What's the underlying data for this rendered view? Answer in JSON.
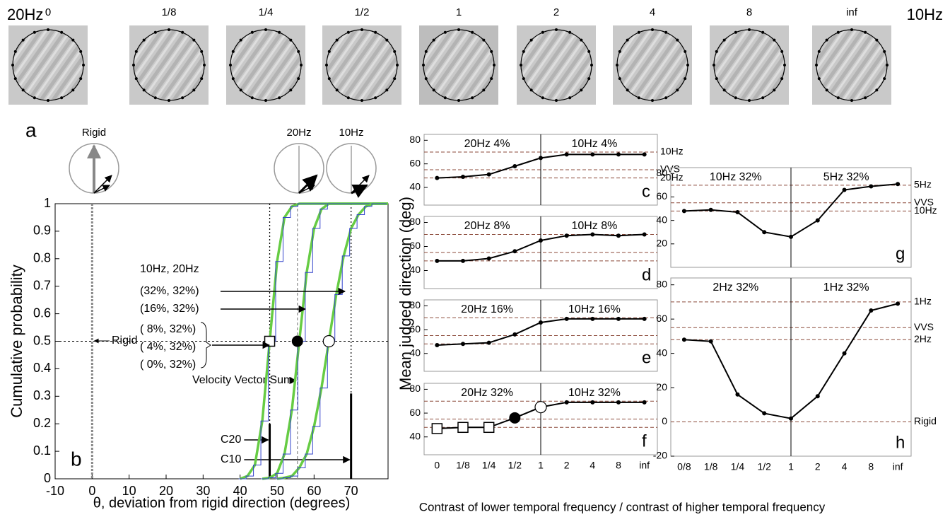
{
  "figure": {
    "left_freq": "20Hz",
    "right_freq": "10Hz",
    "stimulus_labels": [
      "0",
      "1/8",
      "1/4",
      "1/2",
      "1",
      "2",
      "4",
      "8",
      "inf"
    ],
    "panel_a": "a",
    "icons": [
      "Rigid",
      "20Hz",
      "10Hz"
    ],
    "y_label_shared": "Mean judged direction (deg)",
    "x_label_shared": "Contrast of lower temporal frequency / contrast of higher temporal frequency"
  },
  "chart_data": [
    {
      "type": "line",
      "panel": "b",
      "xlabel": "θ, deviation from rigid direction (degrees)",
      "ylabel": "Cumulative probability",
      "xlim": [
        -10,
        80
      ],
      "ylim": [
        0,
        1
      ],
      "xticks": [
        -10,
        0,
        10,
        20,
        30,
        40,
        50,
        60,
        70
      ],
      "yticks": [
        0,
        0.1,
        0.2,
        0.3,
        0.4,
        0.5,
        0.6,
        0.7,
        0.8,
        0.9,
        1
      ],
      "series": [
        {
          "color": "#66cc44",
          "x": [
            40,
            42,
            44,
            46,
            48,
            50,
            52,
            54,
            56,
            80
          ],
          "values": [
            0,
            0.01,
            0.05,
            0.21,
            0.5,
            0.79,
            0.95,
            0.99,
            1,
            1
          ]
        },
        {
          "color": "#66cc44",
          "x": [
            46,
            48,
            50,
            52,
            54,
            56,
            58,
            60,
            62,
            64,
            80
          ],
          "values": [
            0,
            0.004,
            0.02,
            0.09,
            0.25,
            0.5,
            0.75,
            0.91,
            0.98,
            1,
            1
          ]
        },
        {
          "color": "#66cc44",
          "x": [
            50,
            52,
            54,
            56,
            58,
            60,
            62,
            64,
            66,
            68,
            70,
            72,
            74,
            76,
            80
          ],
          "values": [
            0,
            0.004,
            0.01,
            0.04,
            0.09,
            0.19,
            0.33,
            0.5,
            0.67,
            0.81,
            0.91,
            0.96,
            0.99,
            1,
            1
          ]
        }
      ],
      "hline": 0.5,
      "points": [
        {
          "x": 48,
          "y": 0.5,
          "marker": "square"
        },
        {
          "x": 55.5,
          "y": 0.5,
          "marker": "filled"
        },
        {
          "x": 64,
          "y": 0.5,
          "marker": "open"
        }
      ],
      "vlines": [
        {
          "x": 0,
          "label": "Rigid"
        },
        {
          "x": 55.5,
          "label": "Velocity Vector Sum"
        },
        {
          "x": 48,
          "label": "C20"
        },
        {
          "x": 70,
          "label": "C10"
        }
      ],
      "annotations": [
        "10Hz, 20Hz",
        "(32%, 32%)",
        "(16%, 32%)",
        "( 8%, 32%)",
        "( 4%, 32%)",
        "( 0%, 32%)"
      ]
    },
    {
      "type": "line",
      "panel": "c",
      "categories": [
        "0",
        "1/8",
        "1/4",
        "1/2",
        "1",
        "2",
        "4",
        "8",
        "inf"
      ],
      "values": [
        48,
        49,
        51,
        58,
        65,
        68,
        68,
        68,
        68
      ],
      "left_label": "20Hz 4%",
      "right_label": "10Hz 4%",
      "ylim": [
        25,
        85
      ],
      "yticks": [
        40,
        60,
        80
      ],
      "show_xticks": false,
      "ref_lines": [
        {
          "y": 70,
          "label": "10Hz"
        },
        {
          "y": 55,
          "label": "VVS"
        },
        {
          "y": 48,
          "label": "20Hz"
        }
      ]
    },
    {
      "type": "line",
      "panel": "d",
      "categories": [
        "0",
        "1/8",
        "1/4",
        "1/2",
        "1",
        "2",
        "4",
        "8",
        "inf"
      ],
      "values": [
        48,
        48,
        50,
        56,
        65,
        69,
        70,
        69,
        70
      ],
      "left_label": "20Hz 8%",
      "right_label": "10Hz 8%",
      "ylim": [
        25,
        85
      ],
      "yticks": [
        40,
        60,
        80
      ],
      "show_xticks": false,
      "ref_lines": [
        {
          "y": 70
        },
        {
          "y": 55
        },
        {
          "y": 48
        }
      ]
    },
    {
      "type": "line",
      "panel": "e",
      "categories": [
        "0",
        "1/8",
        "1/4",
        "1/2",
        "1",
        "2",
        "4",
        "8",
        "inf"
      ],
      "values": [
        47,
        48,
        49,
        56,
        66,
        69,
        69,
        69,
        69
      ],
      "left_label": "20Hz 16%",
      "right_label": "10Hz 16%",
      "ylim": [
        25,
        85
      ],
      "yticks": [
        40,
        60,
        80
      ],
      "show_xticks": false,
      "ref_lines": [
        {
          "y": 70
        },
        {
          "y": 55
        },
        {
          "y": 48
        }
      ]
    },
    {
      "type": "line",
      "panel": "f",
      "categories": [
        "0",
        "1/8",
        "1/4",
        "1/2",
        "1",
        "2",
        "4",
        "8",
        "inf"
      ],
      "values": [
        47,
        48,
        48,
        56,
        65,
        69,
        69,
        69,
        69
      ],
      "left_label": "20Hz 32%",
      "right_label": "10Hz 32%",
      "ylim": [
        25,
        85
      ],
      "yticks": [
        40,
        60,
        80
      ],
      "show_xticks": true,
      "markers": [
        "square",
        "square",
        "square",
        "filled",
        "open",
        "dot",
        "dot",
        "dot",
        "dot"
      ],
      "ref_lines": [
        {
          "y": 70
        },
        {
          "y": 55
        },
        {
          "y": 48
        }
      ]
    },
    {
      "type": "line",
      "panel": "g",
      "categories": [
        "0/8",
        "1/8",
        "1/4",
        "1/2",
        "1",
        "2",
        "4",
        "8",
        "inf"
      ],
      "values": [
        48,
        49,
        47,
        30,
        26,
        40,
        66,
        69,
        71
      ],
      "left_label": "10Hz 32%",
      "right_label": "5Hz 32%",
      "ylim": [
        0,
        85
      ],
      "yticks": [
        20,
        40,
        60,
        80
      ],
      "show_xticks": false,
      "ref_lines": [
        {
          "y": 70,
          "label": "5Hz"
        },
        {
          "y": 55,
          "label": "VVS"
        },
        {
          "y": 48,
          "label": "10Hz"
        }
      ]
    },
    {
      "type": "line",
      "panel": "h",
      "categories": [
        "0/8",
        "1/8",
        "1/4",
        "1/2",
        "1",
        "2",
        "4",
        "8",
        "inf"
      ],
      "values": [
        48,
        47,
        16,
        5,
        2,
        15,
        40,
        65,
        69
      ],
      "left_label": "2Hz 32%",
      "right_label": "1Hz 32%",
      "ylim": [
        -20,
        84
      ],
      "yticks": [
        -20,
        0,
        20,
        40,
        60,
        80
      ],
      "show_xticks": true,
      "ref_lines": [
        {
          "y": 70,
          "label": "1Hz"
        },
        {
          "y": 55,
          "label": "VVS"
        },
        {
          "y": 48,
          "label": "2Hz"
        },
        {
          "y": 0,
          "label": "Rigid"
        }
      ]
    }
  ]
}
